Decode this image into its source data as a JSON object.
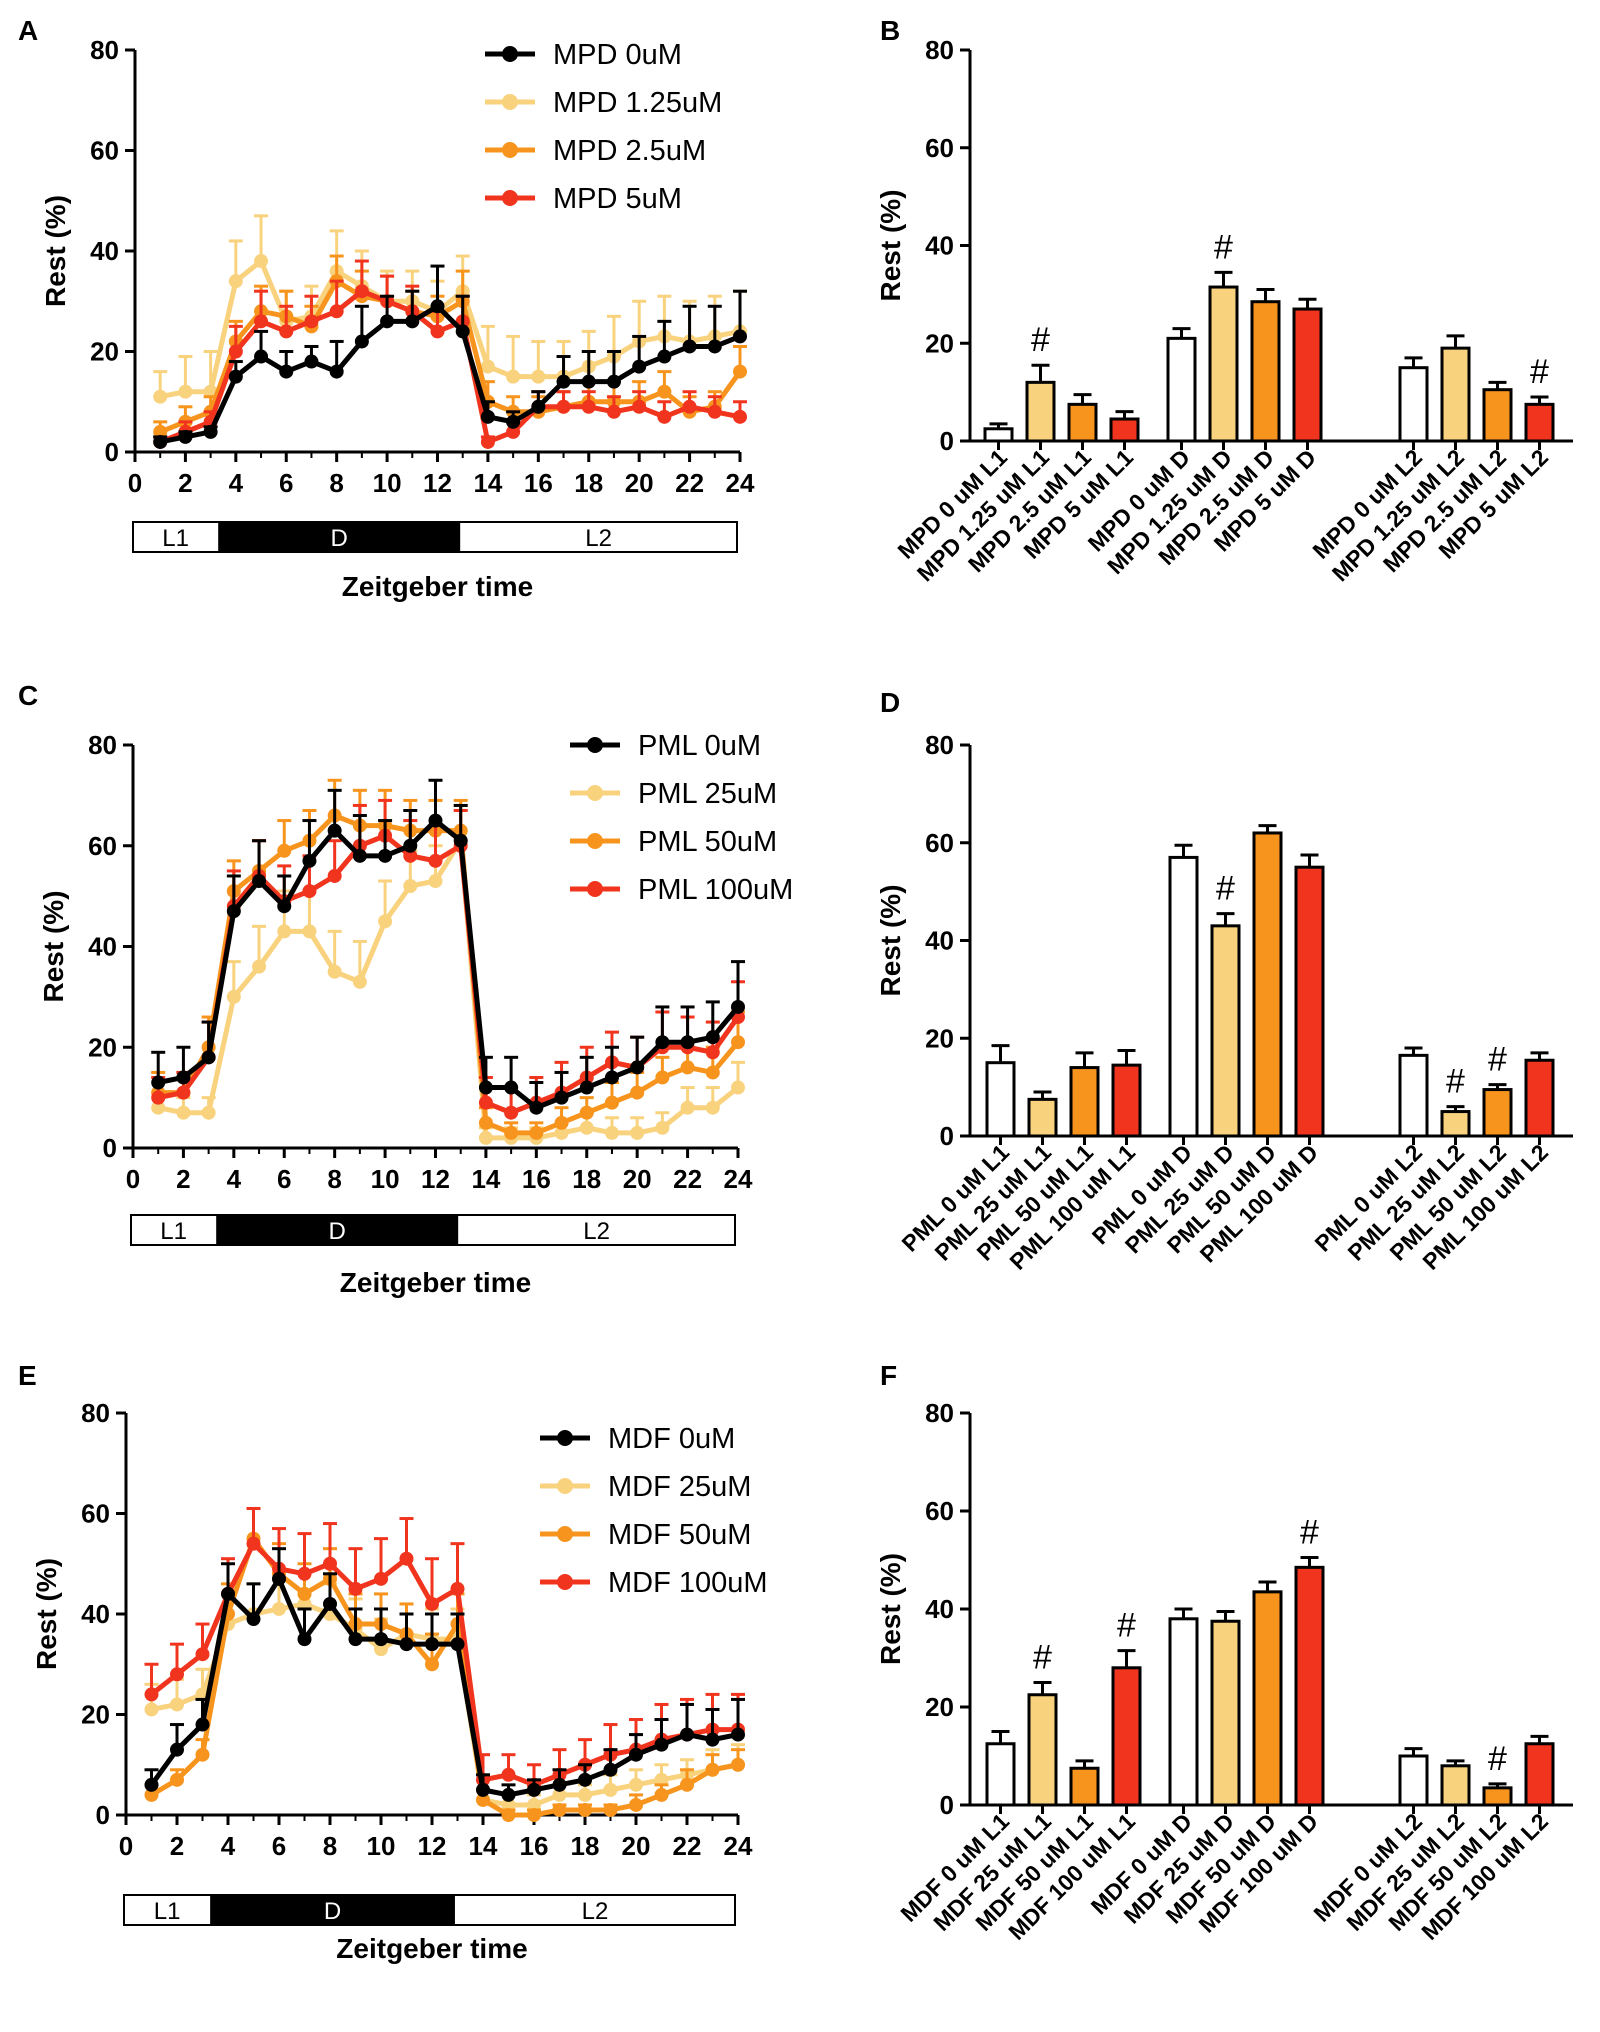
{
  "colors": {
    "c0": "#000000",
    "c1": "#F9D27E",
    "c2": "#F7941D",
    "c3": "#F0341E",
    "axis": "#000000",
    "bar0": "#ffffff"
  },
  "chart_data": [
    {
      "panel": "A",
      "type": "line",
      "title": "",
      "xlabel": "Zeitgeber time",
      "ylabel": "Rest (%)",
      "xlim": [
        0,
        24
      ],
      "ylim": [
        0,
        80
      ],
      "xticks": [
        "0",
        "2",
        "4",
        "6",
        "8",
        "10",
        "12",
        "14",
        "16",
        "18",
        "20",
        "22",
        "24"
      ],
      "yticks": [
        "0",
        "20",
        "40",
        "60",
        "80"
      ],
      "phases": [
        "L1",
        "D",
        "L2"
      ],
      "x": [
        1,
        2,
        3,
        4,
        5,
        6,
        7,
        8,
        9,
        10,
        11,
        12,
        13,
        14,
        15,
        16,
        17,
        18,
        19,
        20,
        21,
        22,
        23,
        24
      ],
      "legend_position": "top-right",
      "series": [
        {
          "name": "MPD 0uM",
          "values": [
            2,
            3,
            4,
            15,
            19,
            16,
            18,
            16,
            22,
            26,
            26,
            29,
            24,
            7,
            6,
            9,
            14,
            14,
            14,
            17,
            19,
            21,
            21,
            23
          ],
          "err": [
            1,
            1,
            1,
            3,
            5,
            4,
            3,
            6,
            7,
            5,
            6,
            8,
            7,
            3,
            2,
            3,
            5,
            6,
            6,
            6,
            7,
            8,
            8,
            9
          ]
        },
        {
          "name": "MPD 1.25uM",
          "values": [
            11,
            12,
            12,
            34,
            38,
            26,
            27,
            36,
            33,
            30,
            30,
            28,
            32,
            17,
            15,
            15,
            15,
            17,
            19,
            22,
            23,
            22,
            23,
            24
          ],
          "err": [
            5,
            7,
            8,
            8,
            9,
            6,
            6,
            8,
            7,
            6,
            6,
            6,
            7,
            8,
            8,
            7,
            7,
            7,
            8,
            8,
            8,
            8,
            8,
            8
          ]
        },
        {
          "name": "MPD 2.5uM",
          "values": [
            4,
            6,
            8,
            22,
            28,
            27,
            25,
            34,
            31,
            30,
            28,
            27,
            30,
            10,
            8,
            8,
            9,
            10,
            10,
            10,
            12,
            8,
            9,
            16
          ],
          "err": [
            2,
            3,
            3,
            4,
            5,
            5,
            4,
            5,
            5,
            5,
            4,
            4,
            6,
            4,
            3,
            3,
            3,
            4,
            4,
            4,
            4,
            3,
            3,
            5
          ]
        },
        {
          "name": "MPD 5uM",
          "values": [
            2,
            4,
            6,
            20,
            26,
            24,
            26,
            28,
            32,
            30,
            28,
            24,
            26,
            2,
            4,
            9,
            9,
            9,
            8,
            9,
            7,
            9,
            8,
            7
          ],
          "err": [
            1,
            2,
            2,
            5,
            6,
            5,
            5,
            6,
            6,
            5,
            5,
            4,
            5,
            1,
            2,
            3,
            3,
            3,
            3,
            3,
            3,
            3,
            3,
            3
          ]
        }
      ]
    },
    {
      "panel": "B",
      "type": "bar",
      "xlabel": "",
      "ylabel": "Rest (%)",
      "ylim": [
        0,
        80
      ],
      "yticks": [
        "0",
        "20",
        "40",
        "60",
        "80"
      ],
      "groups": [
        {
          "categories": [
            "MPD 0 uM L1",
            "MPD 1.25 uM L1",
            "MPD 2.5 uM L1",
            "MPD 5 uM L1"
          ],
          "values": [
            2.5,
            12,
            7.5,
            4.5
          ],
          "err": [
            1,
            3.5,
            2,
            1.5
          ],
          "marks": [
            "",
            "#",
            "",
            ""
          ]
        },
        {
          "categories": [
            "MPD 0 uM D",
            "MPD 1.25 uM D",
            "MPD 2.5 uM D",
            "MPD 5 uM D"
          ],
          "values": [
            21,
            31.5,
            28.5,
            27
          ],
          "err": [
            2,
            3,
            2.5,
            2
          ],
          "marks": [
            "",
            "#",
            "",
            ""
          ]
        },
        {
          "categories": [
            "MPD 0 uM L2",
            "MPD 1.25 uM L2",
            "MPD 2.5 uM L2",
            "MPD 5 uM L2"
          ],
          "values": [
            15,
            19,
            10.5,
            7.5
          ],
          "err": [
            2,
            2.5,
            1.5,
            1.5
          ],
          "marks": [
            "",
            "",
            "",
            "#"
          ]
        }
      ]
    },
    {
      "panel": "C",
      "type": "line",
      "xlabel": "Zeitgeber time",
      "ylabel": "Rest (%)",
      "xlim": [
        0,
        24
      ],
      "ylim": [
        0,
        80
      ],
      "xticks": [
        "0",
        "2",
        "4",
        "6",
        "8",
        "10",
        "12",
        "14",
        "16",
        "18",
        "20",
        "22",
        "24"
      ],
      "yticks": [
        "0",
        "20",
        "40",
        "60",
        "80"
      ],
      "phases": [
        "L1",
        "D",
        "L2"
      ],
      "x": [
        1,
        2,
        3,
        4,
        5,
        6,
        7,
        8,
        9,
        10,
        11,
        12,
        13,
        14,
        15,
        16,
        17,
        18,
        19,
        20,
        21,
        22,
        23,
        24
      ],
      "legend_position": "top-right",
      "series": [
        {
          "name": "PML 0uM",
          "values": [
            13,
            14,
            18,
            47,
            53,
            48,
            57,
            63,
            58,
            58,
            60,
            65,
            61,
            12,
            12,
            8,
            10,
            12,
            14,
            16,
            21,
            21,
            22,
            28
          ],
          "err": [
            6,
            6,
            7,
            7,
            8,
            6,
            8,
            8,
            8,
            7,
            7,
            8,
            7,
            6,
            6,
            5,
            5,
            6,
            6,
            6,
            7,
            7,
            7,
            9
          ]
        },
        {
          "name": "PML 25uM",
          "values": [
            8,
            7,
            7,
            30,
            36,
            43,
            43,
            35,
            33,
            45,
            52,
            53,
            61,
            2,
            2,
            2,
            3,
            4,
            3,
            3,
            4,
            8,
            8,
            12
          ],
          "err": [
            3,
            3,
            3,
            7,
            8,
            8,
            8,
            8,
            8,
            8,
            7,
            7,
            7,
            2,
            2,
            2,
            2,
            3,
            3,
            3,
            3,
            4,
            4,
            5
          ]
        },
        {
          "name": "PML 50uM",
          "values": [
            11,
            11,
            20,
            51,
            55,
            59,
            61,
            66,
            64,
            64,
            63,
            63,
            63,
            5,
            3,
            3,
            5,
            7,
            9,
            11,
            14,
            16,
            15,
            21
          ],
          "err": [
            4,
            4,
            6,
            6,
            6,
            6,
            6,
            7,
            7,
            7,
            6,
            6,
            6,
            3,
            2,
            2,
            3,
            3,
            4,
            4,
            4,
            5,
            5,
            6
          ]
        },
        {
          "name": "PML 100uM",
          "values": [
            10,
            11,
            18,
            48,
            54,
            49,
            51,
            54,
            60,
            62,
            58,
            57,
            60,
            9,
            7,
            9,
            11,
            14,
            17,
            16,
            20,
            20,
            19,
            26
          ],
          "err": [
            4,
            4,
            7,
            7,
            7,
            7,
            7,
            7,
            8,
            7,
            7,
            7,
            7,
            5,
            5,
            5,
            6,
            6,
            6,
            6,
            7,
            6,
            6,
            7
          ]
        }
      ]
    },
    {
      "panel": "D",
      "type": "bar",
      "ylabel": "Rest (%)",
      "ylim": [
        0,
        80
      ],
      "yticks": [
        "0",
        "20",
        "40",
        "60",
        "80"
      ],
      "groups": [
        {
          "categories": [
            "PML 0 uM L1",
            "PML 25 uM L1",
            "PML 50 uM L1",
            "PML 100 uM L1"
          ],
          "values": [
            15,
            7.5,
            14,
            14.5
          ],
          "err": [
            3.5,
            1.5,
            3,
            3
          ],
          "marks": [
            "",
            "",
            "",
            ""
          ]
        },
        {
          "categories": [
            "PML 0 uM D",
            "PML 25 uM D",
            "PML 50 uM D",
            "PML 100 uM D"
          ],
          "values": [
            57,
            43,
            62,
            55
          ],
          "err": [
            2.5,
            2.5,
            1.5,
            2.5
          ],
          "marks": [
            "",
            "#",
            "",
            ""
          ]
        },
        {
          "categories": [
            "PML 0 uM L2",
            "PML 25 uM L2",
            "PML 50 uM L2",
            "PML 100 uM L2"
          ],
          "values": [
            16.5,
            5,
            9.5,
            15.5
          ],
          "err": [
            1.5,
            1,
            1,
            1.5
          ],
          "marks": [
            "",
            "#",
            "#",
            ""
          ]
        }
      ]
    },
    {
      "panel": "E",
      "type": "line",
      "xlabel": "Zeitgeber time",
      "ylabel": "Rest (%)",
      "xlim": [
        0,
        24
      ],
      "ylim": [
        0,
        80
      ],
      "xticks": [
        "0",
        "2",
        "4",
        "6",
        "8",
        "10",
        "12",
        "14",
        "16",
        "18",
        "20",
        "22",
        "24"
      ],
      "yticks": [
        "0",
        "20",
        "40",
        "60",
        "80"
      ],
      "phases": [
        "L1",
        "D",
        "L2"
      ],
      "x": [
        1,
        2,
        3,
        4,
        5,
        6,
        7,
        8,
        9,
        10,
        11,
        12,
        13,
        14,
        15,
        16,
        17,
        18,
        19,
        20,
        21,
        22,
        23,
        24
      ],
      "legend_position": "top-right",
      "series": [
        {
          "name": "MDF 0uM",
          "values": [
            6,
            13,
            18,
            44,
            39,
            47,
            35,
            42,
            35,
            35,
            34,
            34,
            34,
            5,
            4,
            5,
            6,
            7,
            9,
            12,
            14,
            16,
            15,
            16
          ],
          "err": [
            3,
            5,
            5,
            6,
            7,
            6,
            6,
            6,
            6,
            6,
            6,
            6,
            6,
            3,
            2,
            2,
            3,
            3,
            4,
            4,
            5,
            6,
            6,
            7
          ]
        },
        {
          "name": "MDF 25uM",
          "values": [
            21,
            22,
            24,
            38,
            40,
            41,
            42,
            40,
            37,
            33,
            36,
            35,
            35,
            3,
            2,
            2,
            4,
            4,
            5,
            6,
            7,
            8,
            9,
            10
          ],
          "err": [
            5,
            5,
            5,
            6,
            6,
            6,
            6,
            6,
            6,
            6,
            6,
            6,
            6,
            2,
            2,
            2,
            2,
            2,
            3,
            3,
            3,
            3,
            4,
            4
          ]
        },
        {
          "name": "MDF 50uM",
          "values": [
            4,
            7,
            12,
            40,
            55,
            48,
            44,
            47,
            38,
            38,
            36,
            30,
            38,
            3,
            0,
            0,
            1,
            1,
            1,
            2,
            4,
            6,
            9,
            10
          ],
          "err": [
            2,
            2,
            3,
            6,
            6,
            6,
            6,
            6,
            6,
            6,
            6,
            6,
            6,
            2,
            1,
            1,
            1,
            1,
            1,
            2,
            2,
            3,
            3,
            3
          ]
        },
        {
          "name": "MDF 100uM",
          "values": [
            24,
            28,
            32,
            44,
            54,
            49,
            48,
            50,
            45,
            47,
            51,
            42,
            45,
            7,
            8,
            6,
            8,
            10,
            12,
            13,
            15,
            16,
            17,
            17
          ],
          "err": [
            6,
            6,
            6,
            7,
            7,
            8,
            8,
            8,
            8,
            8,
            8,
            9,
            9,
            5,
            4,
            4,
            5,
            5,
            6,
            6,
            7,
            7,
            7,
            7
          ]
        }
      ]
    },
    {
      "panel": "F",
      "type": "bar",
      "ylabel": "Rest (%)",
      "ylim": [
        0,
        80
      ],
      "yticks": [
        "0",
        "20",
        "40",
        "60",
        "80"
      ],
      "groups": [
        {
          "categories": [
            "MDF 0 uM L1",
            "MDF 25 uM L1",
            "MDF 50 uM L1",
            "MDF 100 uM L1"
          ],
          "values": [
            12.5,
            22.5,
            7.5,
            28
          ],
          "err": [
            2.5,
            2.5,
            1.5,
            3.5
          ],
          "marks": [
            "",
            "#",
            "",
            "#"
          ]
        },
        {
          "categories": [
            "MDF 0 uM D",
            "MDF 25 uM D",
            "MDF 50 uM D",
            "MDF 100 uM D"
          ],
          "values": [
            38,
            37.5,
            43.5,
            48.5
          ],
          "err": [
            2,
            2,
            2,
            2
          ],
          "marks": [
            "",
            "",
            "",
            "#"
          ]
        },
        {
          "categories": [
            "MDF 0 uM L2",
            "MDF 25 uM L2",
            "MDF 50 uM L2",
            "MDF 100 uM L2"
          ],
          "values": [
            10,
            8,
            3.5,
            12.5
          ],
          "err": [
            1.5,
            1,
            0.8,
            1.5
          ],
          "marks": [
            "",
            "",
            "#",
            ""
          ]
        }
      ]
    }
  ]
}
